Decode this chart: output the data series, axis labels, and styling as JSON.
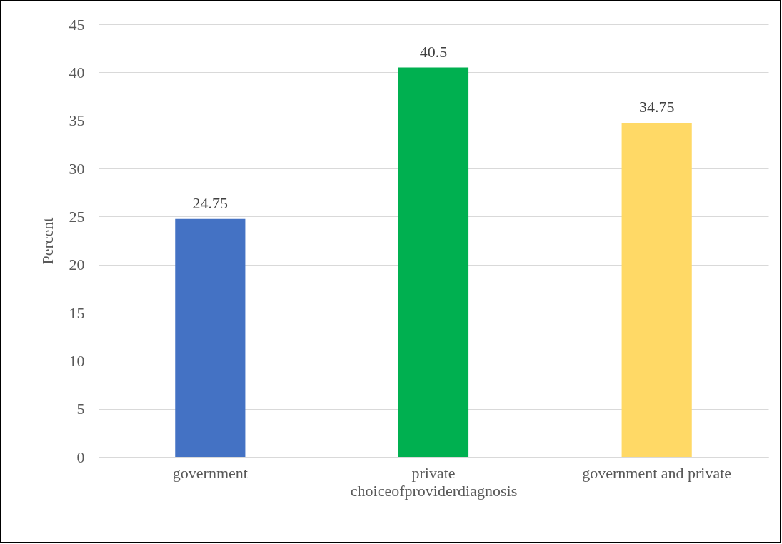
{
  "chart_data": {
    "type": "bar",
    "xlabel": "choiceofproviderdiagnosis",
    "ylabel": "Percent",
    "categories": [
      "government",
      "private",
      "government and private"
    ],
    "values": [
      24.75,
      40.5,
      34.75
    ],
    "colors": [
      "#4472c4",
      "#00b050",
      "#ffd966"
    ],
    "ylim": [
      0,
      45
    ],
    "yticks": [
      0,
      5,
      10,
      15,
      20,
      25,
      30,
      35,
      40,
      45
    ],
    "grid": "y",
    "data_labels": true
  }
}
